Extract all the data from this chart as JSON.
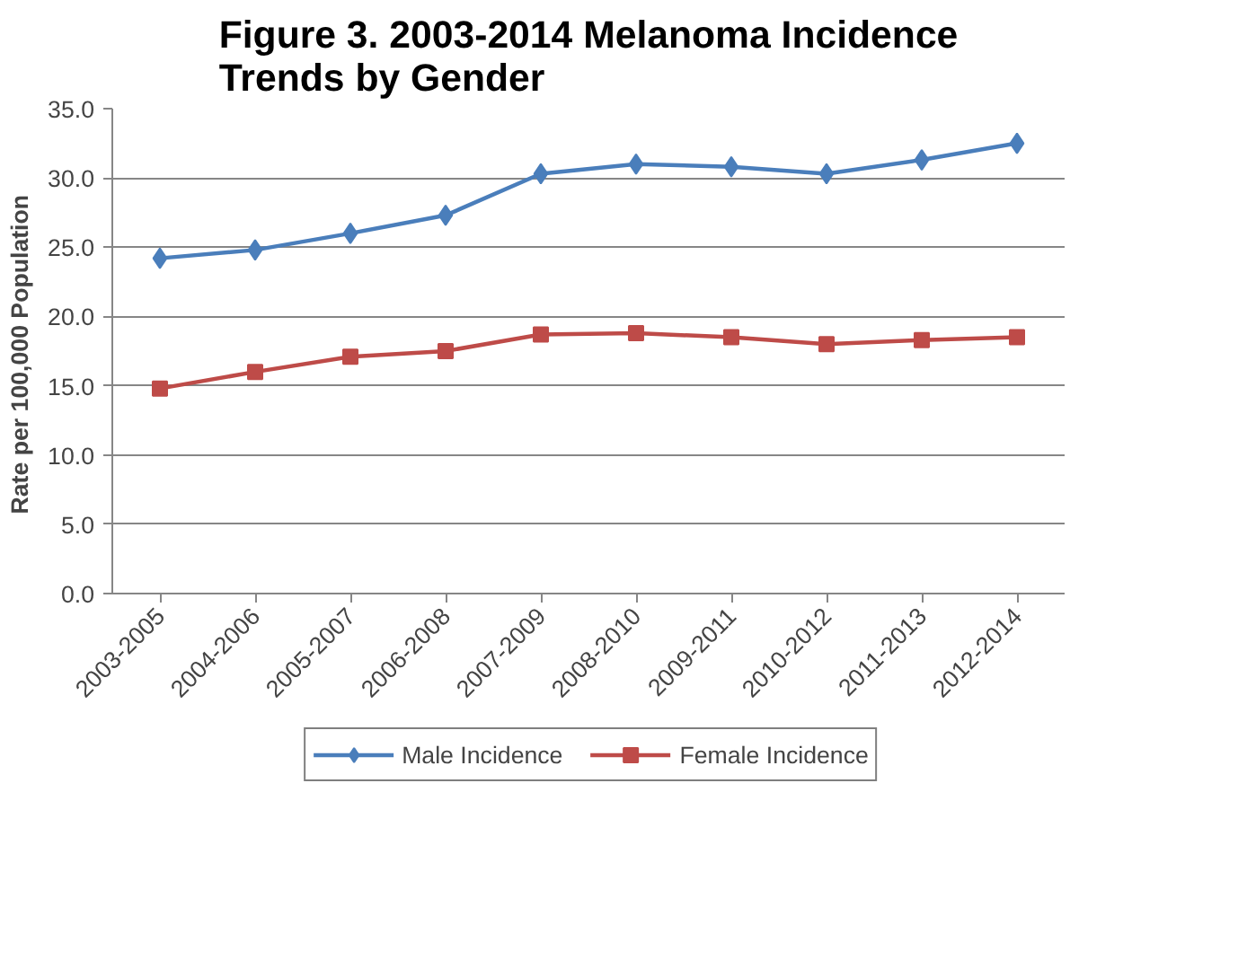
{
  "chart_data": {
    "type": "line",
    "title": "Figure 3. 2003-2014 Melanoma Incidence\nTrends by Gender",
    "ylabel": "Rate per 100,000  Population",
    "categories": [
      "2003-2005",
      "2004-2006",
      "2005-2007",
      "2006-2008",
      "2007-2009",
      "2008-2010",
      "2009-2011",
      "2010-2012",
      "2011-2013",
      "2012-2014"
    ],
    "series": [
      {
        "name": "Male Incidence",
        "color": "#4a7ebb",
        "marker": "diamond",
        "values": [
          24.2,
          24.8,
          26.0,
          27.3,
          30.3,
          31.0,
          30.8,
          30.3,
          31.3,
          32.5
        ]
      },
      {
        "name": "Female Incidence",
        "color": "#be4b48",
        "marker": "square",
        "values": [
          14.8,
          16.0,
          17.1,
          17.5,
          18.7,
          18.8,
          18.5,
          18.0,
          18.3,
          18.5
        ]
      }
    ],
    "ylim": [
      0,
      35
    ],
    "yticks": [
      {
        "value": 0,
        "label": "0.0"
      },
      {
        "value": 5,
        "label": "5.0"
      },
      {
        "value": 10,
        "label": "10.0"
      },
      {
        "value": 15,
        "label": "15.0"
      },
      {
        "value": 20,
        "label": "20.0"
      },
      {
        "value": 25,
        "label": "25.0"
      },
      {
        "value": 30,
        "label": "30.0"
      },
      {
        "value": 35,
        "label": "35.0"
      }
    ],
    "grid": "y",
    "legend": "bottom",
    "line_style": "solid"
  }
}
